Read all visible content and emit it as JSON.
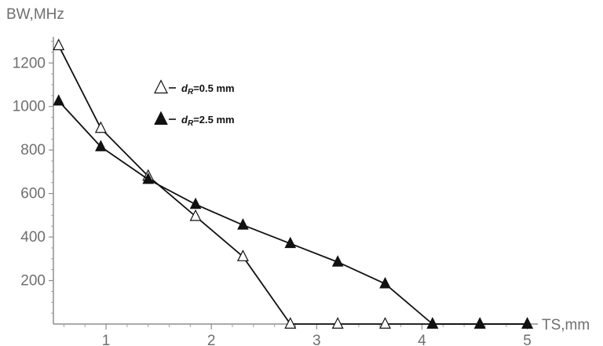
{
  "chart_data": {
    "type": "line",
    "title": "",
    "xlabel": "TS,mm",
    "ylabel": "BW,MHz",
    "xlim": [
      0.5,
      5.1
    ],
    "ylim": [
      0,
      1320
    ],
    "xticks": [
      {
        "value": 1,
        "label": "1"
      },
      {
        "value": 2,
        "label": "2"
      },
      {
        "value": 3,
        "label": "3"
      },
      {
        "value": 4,
        "label": "4"
      },
      {
        "value": 5,
        "label": "5"
      }
    ],
    "yticks": [
      {
        "value": 200,
        "label": "200"
      },
      {
        "value": 400,
        "label": "400"
      },
      {
        "value": 600,
        "label": "600"
      },
      {
        "value": 800,
        "label": "800"
      },
      {
        "value": 1000,
        "label": "1000"
      },
      {
        "value": 1200,
        "label": "1200"
      }
    ],
    "grid": false,
    "legend": {
      "placement": "upper-center-left",
      "entries": [
        {
          "series_index": 0,
          "prefix": "d",
          "subscript": "R",
          "suffix": "=0.5 mm"
        },
        {
          "series_index": 1,
          "prefix": "d",
          "subscript": "R",
          "suffix": "=2.5 mm"
        }
      ]
    },
    "series": [
      {
        "name": "dR=0.5 mm",
        "marker": "open-triangle",
        "color": "#111111",
        "points": [
          {
            "x": 0.55,
            "y": 1280
          },
          {
            "x": 0.95,
            "y": 900
          },
          {
            "x": 1.4,
            "y": 680
          },
          {
            "x": 1.85,
            "y": 495
          },
          {
            "x": 2.3,
            "y": 310
          },
          {
            "x": 2.75,
            "y": 0
          },
          {
            "x": 3.2,
            "y": 0
          },
          {
            "x": 3.65,
            "y": 0
          },
          {
            "x": 4.1,
            "y": 0
          },
          {
            "x": 4.55,
            "y": 0
          },
          {
            "x": 5.0,
            "y": 0
          }
        ]
      },
      {
        "name": "dR=2.5 mm",
        "marker": "filled-triangle",
        "color": "#111111",
        "points": [
          {
            "x": 0.55,
            "y": 1025
          },
          {
            "x": 0.95,
            "y": 815
          },
          {
            "x": 1.4,
            "y": 665
          },
          {
            "x": 1.85,
            "y": 550
          },
          {
            "x": 2.3,
            "y": 455
          },
          {
            "x": 2.75,
            "y": 370
          },
          {
            "x": 3.2,
            "y": 285
          },
          {
            "x": 3.65,
            "y": 185
          },
          {
            "x": 4.1,
            "y": 0
          },
          {
            "x": 4.55,
            "y": 0
          },
          {
            "x": 5.0,
            "y": 0
          }
        ]
      }
    ]
  }
}
